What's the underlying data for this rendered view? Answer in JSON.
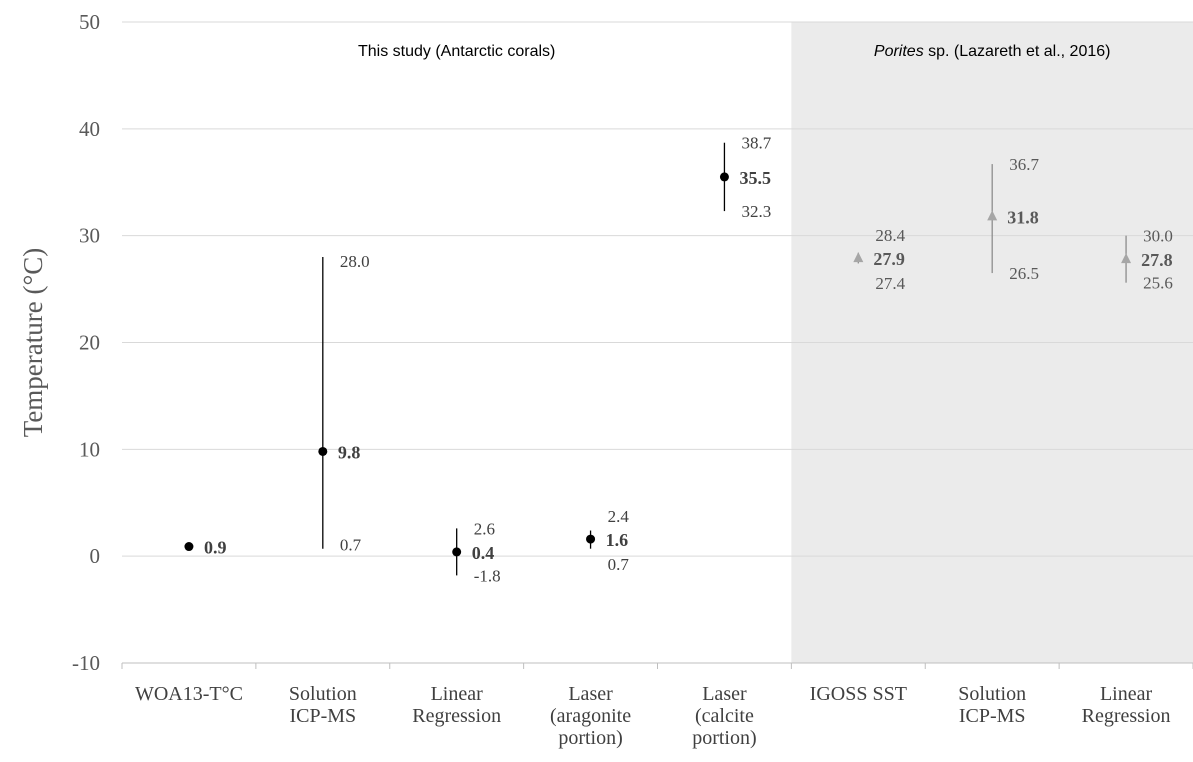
{
  "chart_data": {
    "type": "scatter",
    "ylabel": "Temperature (°C)",
    "ylim": [
      -10,
      50
    ],
    "y_ticks": [
      -10,
      0,
      10,
      20,
      30,
      40,
      50
    ],
    "grid": true,
    "categories": [
      [
        "WOA13-T°C"
      ],
      [
        "Solution",
        "ICP-MS"
      ],
      [
        "Linear",
        "Regression"
      ],
      [
        "Laser",
        "(aragonite",
        "portion)"
      ],
      [
        "Laser",
        "(calcite",
        "portion)"
      ],
      [
        "IGOSS SST"
      ],
      [
        "Solution",
        "ICP-MS"
      ],
      [
        "Linear",
        "Regression"
      ]
    ],
    "panels": [
      {
        "label": "This study (Antarctic corals)",
        "label_italic": "",
        "categories": [
          0,
          1,
          2,
          3,
          4
        ],
        "shaded": false
      },
      {
        "label": " sp. (Lazareth et al., 2016)",
        "label_italic": "Porites",
        "categories": [
          5,
          6,
          7
        ],
        "shaded": true,
        "shade_color": "#ebebeb"
      }
    ],
    "series": [
      {
        "marker": "circle",
        "color": "#000000",
        "points": [
          {
            "category": 0,
            "value": 0.9,
            "value_label": "0.9",
            "high": null,
            "high_label": "",
            "low": null,
            "low_label": ""
          },
          {
            "category": 1,
            "value": 9.8,
            "value_label": "9.8",
            "high": 28.0,
            "high_label": "28.0",
            "low": 0.7,
            "low_label": "0.7"
          },
          {
            "category": 2,
            "value": 0.4,
            "value_label": "0.4",
            "high": 2.6,
            "high_label": "2.6",
            "low": -1.8,
            "low_label": "-1.8"
          },
          {
            "category": 3,
            "value": 1.6,
            "value_label": "1.6",
            "high": 2.4,
            "high_label": "2.4",
            "low": 0.7,
            "low_label": "0.7"
          },
          {
            "category": 4,
            "value": 35.5,
            "value_label": "35.5",
            "high": 38.7,
            "high_label": "38.7",
            "low": 32.3,
            "low_label": "32.3"
          }
        ]
      },
      {
        "marker": "triangle",
        "color": "#8c8c8c",
        "points": [
          {
            "category": 5,
            "value": 27.9,
            "value_label": "27.9",
            "high": 28.4,
            "high_label": "28.4",
            "low": 27.4,
            "low_label": "27.4"
          },
          {
            "category": 6,
            "value": 31.8,
            "value_label": "31.8",
            "high": 36.7,
            "high_label": "36.7",
            "low": 26.5,
            "low_label": "26.5"
          },
          {
            "category": 7,
            "value": 27.8,
            "value_label": "27.8",
            "high": 30.0,
            "high_label": "30.0",
            "low": 25.6,
            "low_label": "25.6"
          }
        ]
      }
    ]
  }
}
